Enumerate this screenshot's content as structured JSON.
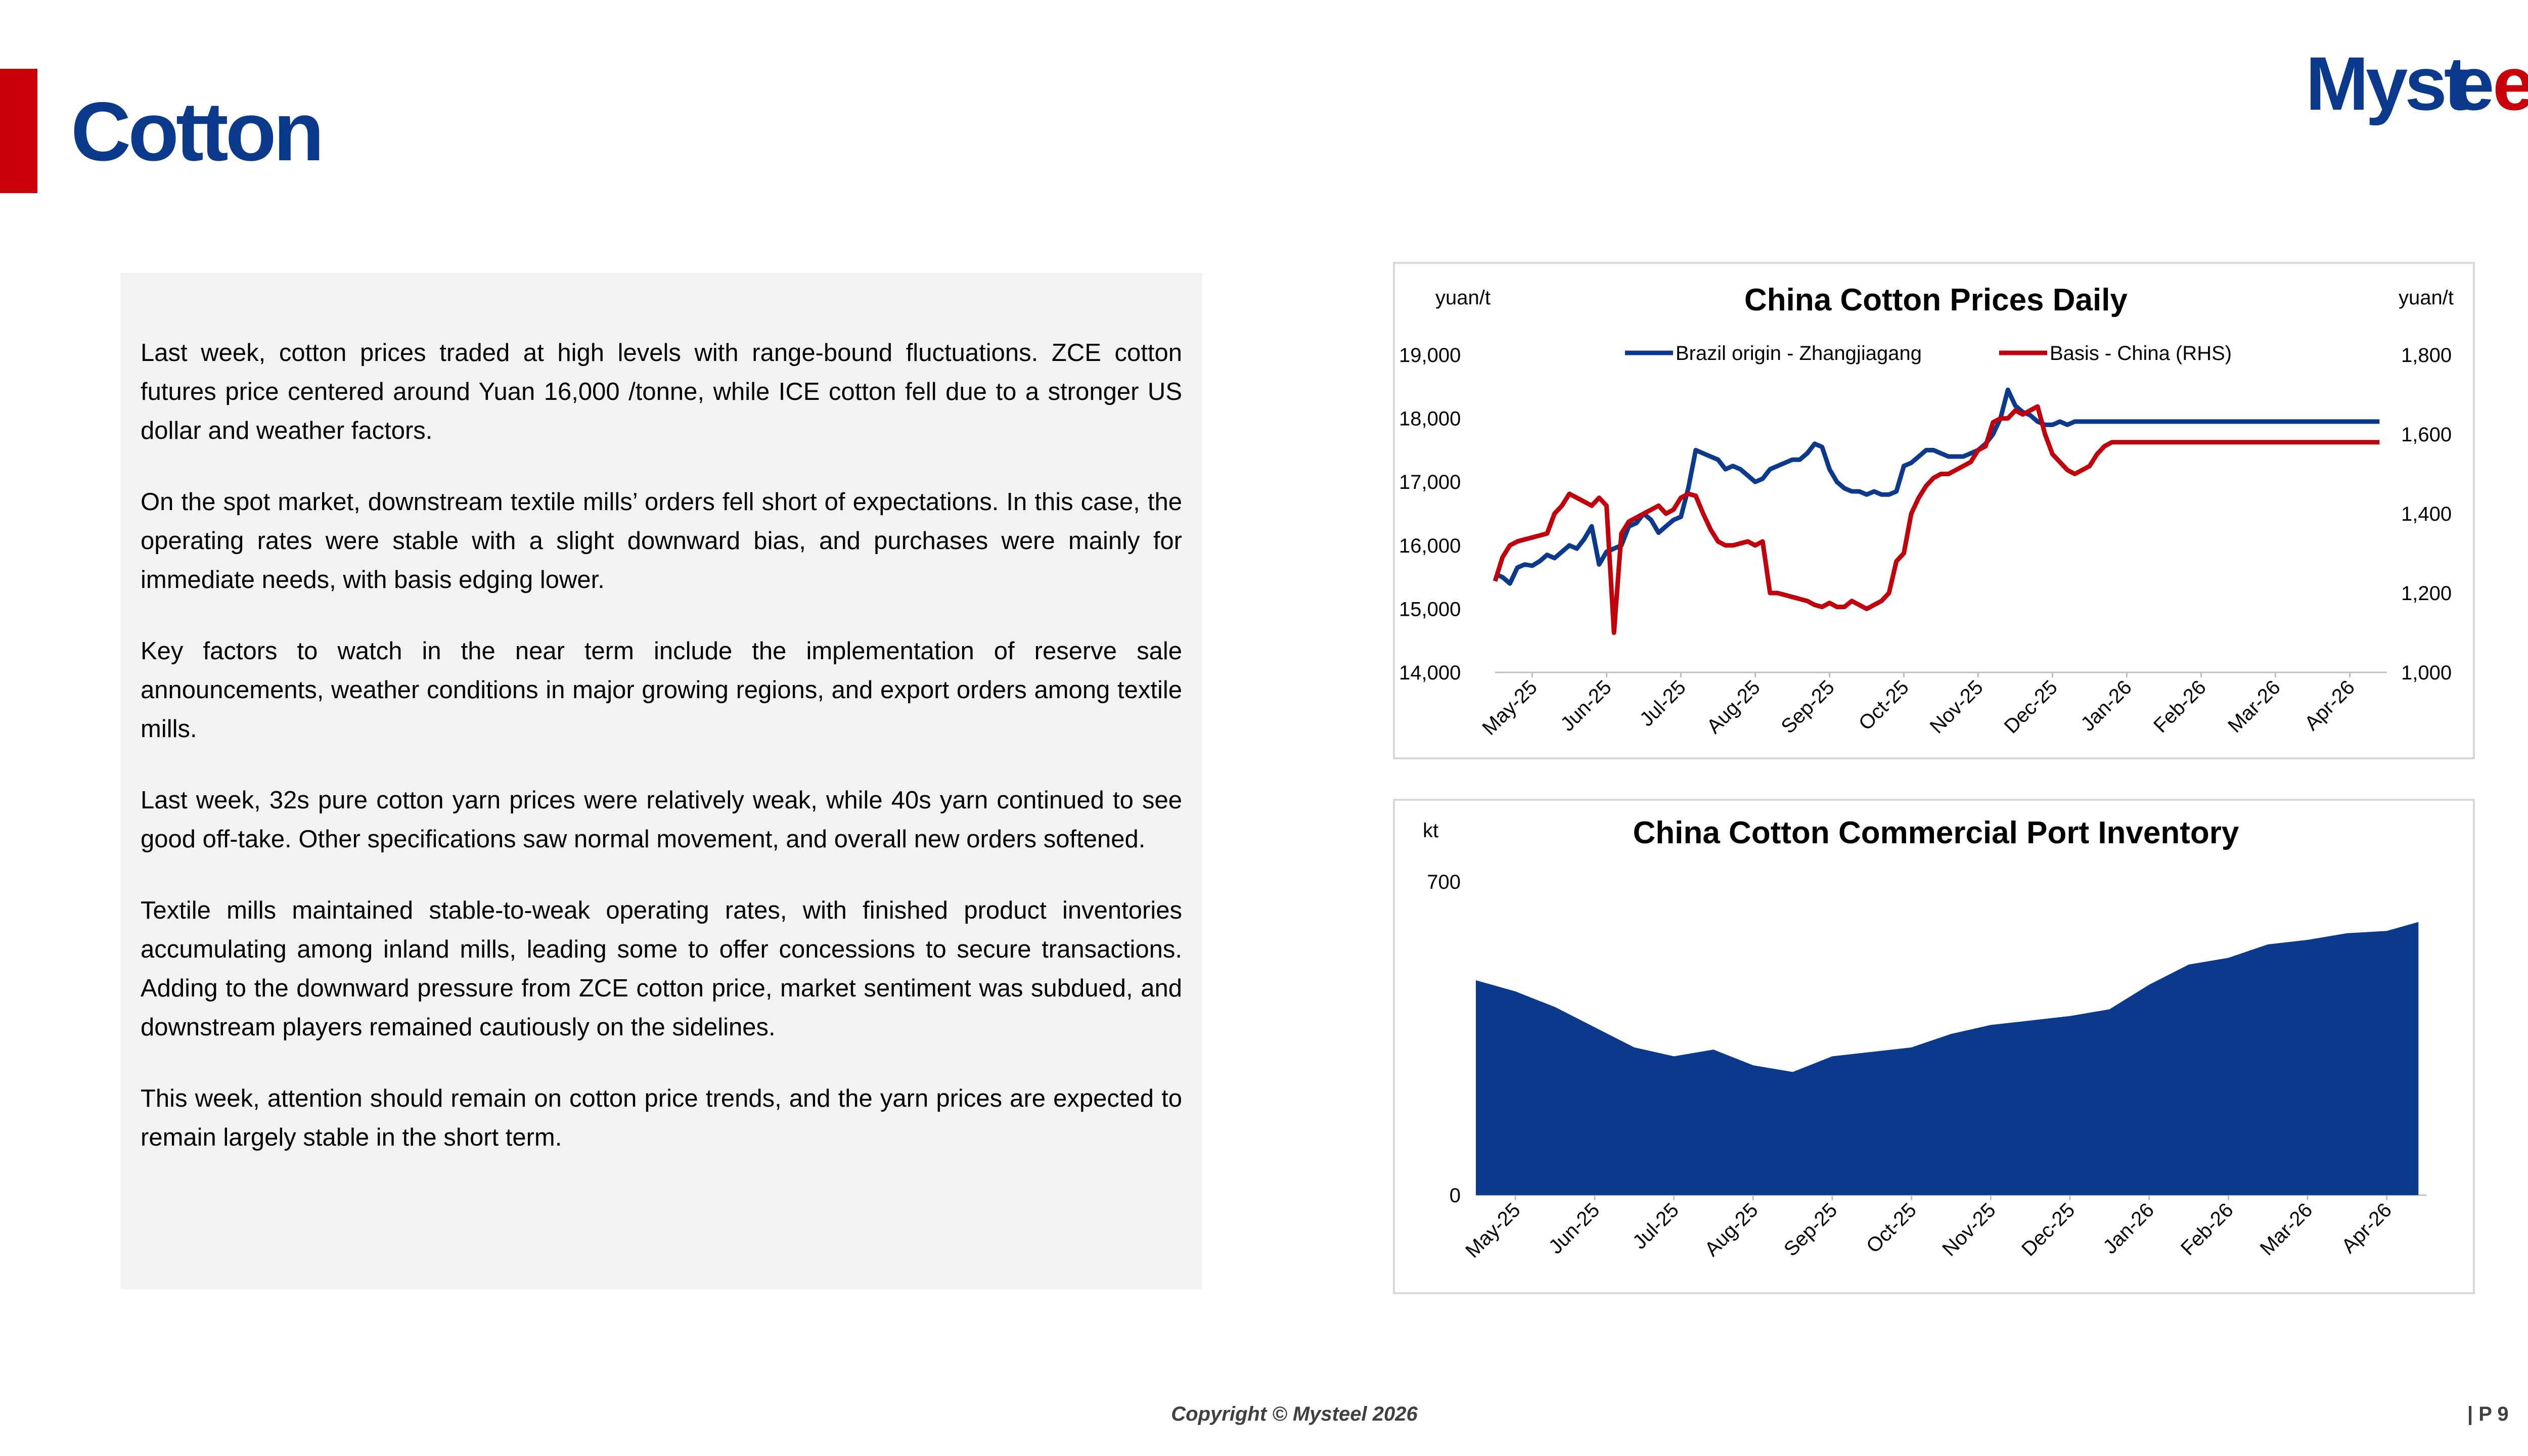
{
  "page": {
    "title": "Cotton",
    "logo_text": "Mysteel",
    "copyright": "Copyright © Mysteel 2026",
    "page_number": "| P 9",
    "colors": {
      "title_blue": "#0b3a8c",
      "accent_red": "#c8000a",
      "series_blue": "#0b3a8c",
      "series_red": "#c0000b",
      "panel_gray": "#f2f2f2"
    }
  },
  "commentary": {
    "paragraphs": [
      "Last week, cotton prices traded at high levels with range-bound fluctuations. ZCE cotton futures price centered around Yuan 16,000 /tonne, while ICE cotton fell due to a stronger US dollar and weather factors.",
      "On the spot market, downstream textile mills’ orders fell short of expectations. In this case, the operating rates were stable with a slight downward bias, and purchases were mainly for immediate needs, with basis edging lower.",
      "Key factors to watch in the near term include the implementation of reserve sale announcements, weather conditions in major growing regions, and export orders among textile mills.",
      "Last week, 32s pure cotton yarn prices were relatively weak, while 40s yarn continued to see good off-take. Other specifications saw normal movement, and overall new orders softened.",
      "Textile mills maintained stable-to-weak operating rates, with finished product inventories accumulating among inland mills, leading some to offer concessions to secure transactions. Adding to the downward pressure from ZCE cotton price, market sentiment was subdued, and downstream players remained cautiously on the sidelines.",
      "This week, attention should remain on cotton price trends, and the yarn prices are expected to remain largely stable in the short term."
    ]
  },
  "chart_data": [
    {
      "type": "line",
      "title": "China Cotton Prices Daily",
      "ylabel_left": "yuan/t",
      "ylabel_right": "yuan/t",
      "x_ticks": [
        "May-25",
        "Jun-25",
        "Jul-25",
        "Aug-25",
        "Sep-25",
        "Oct-25",
        "Nov-25",
        "Dec-25",
        "Jan-26",
        "Feb-26",
        "Mar-26",
        "Apr-26"
      ],
      "ylim_left": [
        14000,
        19000
      ],
      "yticks_left": [
        "14,000",
        "15,000",
        "16,000",
        "17,000",
        "18,000",
        "19,000"
      ],
      "ylim_right": [
        1000,
        1800
      ],
      "yticks_right": [
        "1,000",
        "1,200",
        "1,400",
        "1,600",
        "1,800"
      ],
      "legend_position": "top",
      "grid": false,
      "series": [
        {
          "name": "Brazil origin - Zhangjiagang",
          "axis": "left",
          "color": "#0b3a8c",
          "x": [
            0,
            0.1,
            0.2,
            0.3,
            0.4,
            0.5,
            0.6,
            0.7,
            0.8,
            0.9,
            1.0,
            1.1,
            1.2,
            1.3,
            1.4,
            1.5,
            1.6,
            1.7,
            1.8,
            1.9,
            2.0,
            2.1,
            2.2,
            2.3,
            2.4,
            2.5,
            2.6,
            2.7,
            2.8,
            2.9,
            3.0,
            3.1,
            3.2,
            3.3,
            3.4,
            3.5,
            3.6,
            3.7,
            3.8,
            3.9,
            4.0,
            4.1,
            4.2,
            4.3,
            4.4,
            4.5,
            4.6,
            4.7,
            4.8,
            4.9,
            5.0,
            5.1,
            5.2,
            5.3,
            5.4,
            5.5,
            5.6,
            5.7,
            5.8,
            5.9,
            6.0,
            6.1,
            6.2,
            6.3,
            6.4,
            6.5,
            6.6,
            6.7,
            6.8,
            6.9,
            7.0,
            7.1,
            7.2,
            7.3,
            7.4,
            7.5,
            7.6,
            7.7,
            7.8,
            7.9,
            8.0,
            8.1,
            8.2,
            8.3,
            8.4,
            8.5,
            8.6,
            8.7,
            8.8,
            8.9,
            9.0,
            9.1,
            9.2,
            9.3,
            9.4,
            9.5,
            9.6,
            9.7,
            9.8,
            9.9,
            10.0,
            10.1,
            10.2,
            10.3,
            10.4,
            10.5,
            10.6,
            10.7,
            10.8,
            10.9,
            11.0,
            11.1,
            11.2,
            11.3,
            11.4,
            11.5,
            11.6,
            11.7,
            11.8,
            11.9
          ],
          "values": [
            15550,
            15500,
            15400,
            15650,
            15700,
            15680,
            15750,
            15850,
            15800,
            15900,
            16000,
            15950,
            16100,
            16300,
            15700,
            15900,
            15950,
            16000,
            16300,
            16350,
            16500,
            16400,
            16200,
            16300,
            16400,
            16450,
            16900,
            17500,
            17450,
            17400,
            17350,
            17200,
            17250,
            17200,
            17100,
            17000,
            17050,
            17200,
            17250,
            17300,
            17350,
            17350,
            17450,
            17600,
            17550,
            17200,
            17000,
            16900,
            16850,
            16850,
            16800,
            16850,
            16800,
            16800,
            16850,
            17250,
            17300,
            17400,
            17500,
            17500,
            17450,
            17400,
            17400,
            17400,
            17450,
            17500,
            17600,
            17750,
            18000,
            18450,
            18200,
            18100,
            18050,
            17950,
            17900,
            17900,
            17950,
            17900,
            17950,
            17950,
            17950,
            17950,
            17950,
            17950,
            17950,
            17950,
            17950,
            17950,
            17950,
            17950,
            17950,
            17950,
            17950,
            17950,
            17950,
            17950,
            17950,
            17950,
            17950,
            17950,
            17950,
            17950,
            17950,
            17950,
            17950,
            17950,
            17950,
            17950,
            17950,
            17950,
            17950,
            17950,
            17950,
            17950,
            17950,
            17950,
            17950,
            17950,
            17950,
            17950
          ]
        },
        {
          "name": "Basis - China (RHS)",
          "axis": "right",
          "color": "#c0000b",
          "x": [
            0,
            0.1,
            0.2,
            0.3,
            0.4,
            0.5,
            0.6,
            0.7,
            0.8,
            0.9,
            1.0,
            1.1,
            1.2,
            1.3,
            1.4,
            1.5,
            1.6,
            1.7,
            1.8,
            1.9,
            2.0,
            2.1,
            2.2,
            2.3,
            2.4,
            2.5,
            2.6,
            2.7,
            2.8,
            2.9,
            3.0,
            3.1,
            3.2,
            3.3,
            3.4,
            3.5,
            3.6,
            3.7,
            3.8,
            3.9,
            4.0,
            4.1,
            4.2,
            4.3,
            4.4,
            4.5,
            4.6,
            4.7,
            4.8,
            4.9,
            5.0,
            5.1,
            5.2,
            5.3,
            5.4,
            5.5,
            5.6,
            5.7,
            5.8,
            5.9,
            6.0,
            6.1,
            6.2,
            6.3,
            6.4,
            6.5,
            6.6,
            6.7,
            6.8,
            6.9,
            7.0,
            7.1,
            7.2,
            7.3,
            7.4,
            7.5,
            7.6,
            7.7,
            7.8,
            7.9,
            8.0,
            8.1,
            8.2,
            8.3,
            8.4,
            8.5,
            8.6,
            8.7,
            8.8,
            8.9,
            9.0,
            9.1,
            9.2,
            9.3,
            9.4,
            9.5,
            9.6,
            9.7,
            9.8,
            9.9,
            10.0,
            10.1,
            10.2,
            10.3,
            10.4,
            10.5,
            10.6,
            10.7,
            10.8,
            10.9,
            11.0,
            11.1,
            11.2,
            11.3,
            11.4,
            11.5,
            11.6,
            11.7,
            11.8,
            11.9
          ],
          "values": [
            1230,
            1290,
            1320,
            1330,
            1335,
            1340,
            1345,
            1350,
            1400,
            1420,
            1450,
            1440,
            1430,
            1420,
            1440,
            1420,
            1100,
            1350,
            1380,
            1390,
            1400,
            1410,
            1420,
            1400,
            1410,
            1440,
            1450,
            1445,
            1400,
            1360,
            1330,
            1320,
            1320,
            1325,
            1330,
            1320,
            1330,
            1200,
            1200,
            1195,
            1190,
            1185,
            1180,
            1170,
            1165,
            1175,
            1165,
            1165,
            1180,
            1170,
            1160,
            1170,
            1180,
            1200,
            1280,
            1300,
            1400,
            1440,
            1470,
            1490,
            1500,
            1500,
            1510,
            1520,
            1530,
            1560,
            1570,
            1630,
            1640,
            1640,
            1660,
            1650,
            1660,
            1670,
            1600,
            1550,
            1530,
            1510,
            1500,
            1510,
            1520,
            1550,
            1570,
            1580,
            1580,
            1580,
            1580,
            1580,
            1580,
            1580,
            1580,
            1580,
            1580,
            1580,
            1580,
            1580,
            1580,
            1580,
            1580,
            1580,
            1580,
            1580,
            1580,
            1580,
            1580,
            1580,
            1580,
            1580,
            1580,
            1580,
            1580,
            1580,
            1580,
            1580,
            1580,
            1580,
            1580,
            1580,
            1580,
            1580
          ]
        }
      ]
    },
    {
      "type": "area",
      "title": "China Cotton Commercial Port Inventory",
      "ylabel": "kt",
      "x_ticks": [
        "May-25",
        "Jun-25",
        "Jul-25",
        "Aug-25",
        "Sep-25",
        "Oct-25",
        "Nov-25",
        "Dec-25",
        "Jan-26",
        "Feb-26",
        "Mar-26",
        "Apr-26"
      ],
      "ylim": [
        0,
        700
      ],
      "yticks": [
        "0",
        "700"
      ],
      "grid": false,
      "series": [
        {
          "name": "",
          "color": "#0b3a8c",
          "x": [
            0,
            0.5,
            1.0,
            1.5,
            2.0,
            2.5,
            3.0,
            3.5,
            4.0,
            4.5,
            5.0,
            5.5,
            6.0,
            6.5,
            7.0,
            7.5,
            8.0,
            8.5,
            9.0,
            9.5,
            10.0,
            10.5,
            11.0,
            11.5,
            11.9
          ],
          "values": [
            480,
            455,
            420,
            375,
            330,
            310,
            325,
            290,
            275,
            310,
            320,
            330,
            360,
            380,
            390,
            400,
            415,
            470,
            515,
            530,
            560,
            570,
            585,
            590,
            610
          ]
        }
      ]
    }
  ]
}
